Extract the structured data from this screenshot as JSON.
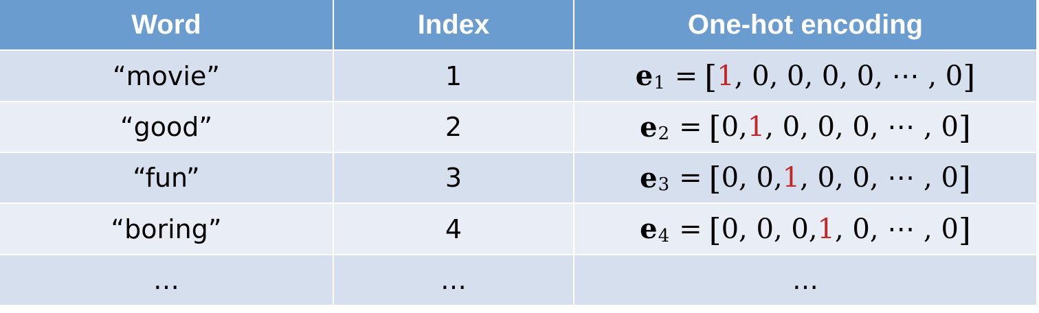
{
  "header": {
    "word": "Word",
    "index": "Index",
    "encoding": "One-hot encoding"
  },
  "rows": [
    {
      "word": "“movie”",
      "index": "1",
      "vec": "e",
      "sub": "1",
      "eq": "=",
      "open": "[",
      "before": "",
      "hot": "1",
      "after": ", 0, 0, 0, 0, ⋯ , 0",
      "close": "]"
    },
    {
      "word": "“good”",
      "index": "2",
      "vec": "e",
      "sub": "2",
      "eq": "=",
      "open": "[",
      "before": "0, ",
      "hot": "1",
      "after": ", 0, 0, 0, ⋯ , 0",
      "close": "]"
    },
    {
      "word": "“fun”",
      "index": "3",
      "vec": "e",
      "sub": "3",
      "eq": "=",
      "open": "[",
      "before": "0, 0, ",
      "hot": "1",
      "after": ", 0, 0, ⋯ , 0",
      "close": "]"
    },
    {
      "word": "“boring”",
      "index": "4",
      "vec": "e",
      "sub": "4",
      "eq": "=",
      "open": "[",
      "before": "0, 0, 0, ",
      "hot": "1",
      "after": ", 0, ⋯ , 0",
      "close": "]"
    }
  ],
  "ellipsis_row": {
    "word": "…",
    "index": "…",
    "encoding": "…"
  },
  "colors": {
    "header_bg": "#6a9ccf",
    "row_odd_bg": "#d5dfed",
    "row_even_bg": "#e9eef6",
    "hot_value": "#c0282a"
  }
}
